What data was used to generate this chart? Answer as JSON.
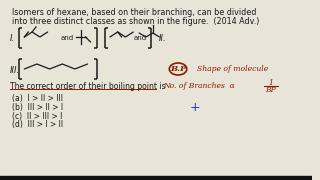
{
  "background_color": "#e8e4d8",
  "title_text1": "Isomers of hexane, based on their branching, can be divided",
  "title_text2": "into three distinct classes as shown in the figure.  (2014 Adv.)",
  "title_fontsize": 5.8,
  "question_text": "The correct order of their boiling point is",
  "options": [
    "(a)  I > II > III",
    "(b)  III > II > I",
    "(c)  II > III > I",
    "(d)  III > I > II"
  ],
  "text_color": "#1a1a1a",
  "red_color": "#8b1a00",
  "blue_color": "#1a3acc",
  "border_color": "#2a2a2a"
}
